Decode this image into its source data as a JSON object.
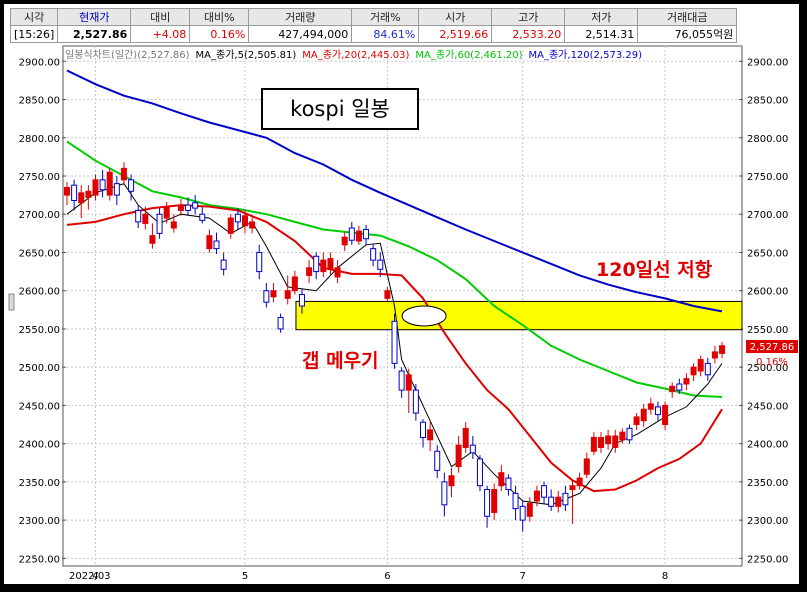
{
  "quote": {
    "headers": [
      "시각",
      "현재가",
      "대비",
      "대비%",
      "거래량",
      "거래%",
      "시가",
      "고가",
      "저가",
      "거래대금"
    ],
    "values": [
      "[15:26]",
      "2,527.86",
      "+4.08",
      "0.16%",
      "427,494,000",
      "84.61%",
      "2,519.66",
      "2,533.20",
      "2,514.31",
      "76,055억원"
    ],
    "value_colors": [
      "#000000",
      "#000000",
      "#e00000",
      "#e00000",
      "#000000",
      "#1a2fd0",
      "#e00000",
      "#e00000",
      "#000000",
      "#000000"
    ]
  },
  "legend": [
    {
      "text": "일봉식차트(일간)(2,527.86)",
      "color": "#777777"
    },
    {
      "text": "MA_종가,5(2,505.81)",
      "color": "#000000"
    },
    {
      "text": "MA_종가,20(2,445.03)",
      "color": "#e00000"
    },
    {
      "text": "MA_종가,60(2,461.20)",
      "color": "#00c000"
    },
    {
      "text": "MA_종가,120(2,573.29)",
      "color": "#0000c8"
    }
  ],
  "annotations": {
    "title": "kospi  일봉",
    "resistance": "120일선 저항",
    "gap_fill": "갭 메우기"
  },
  "price_tag": {
    "price": "2,527.86",
    "pct": "0.16%"
  },
  "chart_data": {
    "type": "candlestick",
    "ylim": [
      2240,
      2920
    ],
    "yticks": [
      2250,
      2300,
      2350,
      2400,
      2450,
      2500,
      2550,
      2600,
      2650,
      2700,
      2750,
      2800,
      2850,
      2900
    ],
    "ytick_labels": [
      "2250.00",
      "2300.00",
      "2350.00",
      "2400.00",
      "2450.00",
      "2500.00",
      "2550.00",
      "2600.00",
      "2650.00",
      "2700.00",
      "2750.00",
      "2800.00",
      "2850.00",
      "2900.00"
    ],
    "x_labels": [
      {
        "index": 0,
        "text": "2022/03"
      },
      {
        "index": 4,
        "text": "4"
      },
      {
        "index": 25,
        "text": "5"
      },
      {
        "index": 45,
        "text": "6"
      },
      {
        "index": 64,
        "text": "7"
      },
      {
        "index": 84,
        "text": "8"
      }
    ],
    "candles": [
      {
        "o": 2725,
        "c": 2735,
        "h": 2742,
        "l": 2712
      },
      {
        "o": 2738,
        "c": 2718,
        "h": 2745,
        "l": 2705
      },
      {
        "o": 2715,
        "c": 2728,
        "h": 2738,
        "l": 2695
      },
      {
        "o": 2722,
        "c": 2730,
        "h": 2738,
        "l": 2706
      },
      {
        "o": 2725,
        "c": 2745,
        "h": 2752,
        "l": 2718
      },
      {
        "o": 2745,
        "c": 2732,
        "h": 2758,
        "l": 2722
      },
      {
        "o": 2725,
        "c": 2755,
        "h": 2760,
        "l": 2718
      },
      {
        "o": 2740,
        "c": 2725,
        "h": 2750,
        "l": 2712
      },
      {
        "o": 2745,
        "c": 2760,
        "h": 2768,
        "l": 2738
      },
      {
        "o": 2745,
        "c": 2730,
        "h": 2752,
        "l": 2718
      },
      {
        "o": 2705,
        "c": 2690,
        "h": 2712,
        "l": 2682
      },
      {
        "o": 2688,
        "c": 2700,
        "h": 2710,
        "l": 2680
      },
      {
        "o": 2662,
        "c": 2672,
        "h": 2688,
        "l": 2655
      },
      {
        "o": 2700,
        "c": 2675,
        "h": 2708,
        "l": 2668
      },
      {
        "o": 2695,
        "c": 2710,
        "h": 2716,
        "l": 2688
      },
      {
        "o": 2682,
        "c": 2690,
        "h": 2700,
        "l": 2676
      },
      {
        "o": 2705,
        "c": 2712,
        "h": 2720,
        "l": 2698
      },
      {
        "o": 2712,
        "c": 2705,
        "h": 2722,
        "l": 2698
      },
      {
        "o": 2715,
        "c": 2708,
        "h": 2725,
        "l": 2700
      },
      {
        "o": 2700,
        "c": 2692,
        "h": 2710,
        "l": 2688
      },
      {
        "o": 2655,
        "c": 2672,
        "h": 2680,
        "l": 2650
      },
      {
        "o": 2665,
        "c": 2655,
        "h": 2676,
        "l": 2648
      },
      {
        "o": 2640,
        "c": 2628,
        "h": 2650,
        "l": 2620
      },
      {
        "o": 2675,
        "c": 2695,
        "h": 2700,
        "l": 2668
      },
      {
        "o": 2700,
        "c": 2690,
        "h": 2708,
        "l": 2680
      },
      {
        "o": 2685,
        "c": 2698,
        "h": 2706,
        "l": 2675
      },
      {
        "o": 2682,
        "c": 2690,
        "h": 2696,
        "l": 2675
      },
      {
        "o": 2650,
        "c": 2625,
        "h": 2660,
        "l": 2615
      },
      {
        "o": 2600,
        "c": 2585,
        "h": 2610,
        "l": 2578
      },
      {
        "o": 2592,
        "c": 2600,
        "h": 2610,
        "l": 2585
      },
      {
        "o": 2565,
        "c": 2550,
        "h": 2570,
        "l": 2545
      },
      {
        "o": 2590,
        "c": 2600,
        "h": 2620,
        "l": 2582
      },
      {
        "o": 2600,
        "c": 2618,
        "h": 2626,
        "l": 2595
      },
      {
        "o": 2595,
        "c": 2580,
        "h": 2602,
        "l": 2570
      },
      {
        "o": 2620,
        "c": 2630,
        "h": 2640,
        "l": 2610
      },
      {
        "o": 2645,
        "c": 2625,
        "h": 2650,
        "l": 2615
      },
      {
        "o": 2625,
        "c": 2640,
        "h": 2650,
        "l": 2618
      },
      {
        "o": 2628,
        "c": 2642,
        "h": 2650,
        "l": 2620
      },
      {
        "o": 2618,
        "c": 2630,
        "h": 2640,
        "l": 2610
      },
      {
        "o": 2660,
        "c": 2670,
        "h": 2676,
        "l": 2652
      },
      {
        "o": 2682,
        "c": 2666,
        "h": 2690,
        "l": 2660
      },
      {
        "o": 2665,
        "c": 2678,
        "h": 2685,
        "l": 2660
      },
      {
        "o": 2680,
        "c": 2668,
        "h": 2686,
        "l": 2660
      },
      {
        "o": 2655,
        "c": 2640,
        "h": 2660,
        "l": 2632
      },
      {
        "o": 2640,
        "c": 2628,
        "h": 2650,
        "l": 2618
      },
      {
        "o": 2590,
        "c": 2600,
        "h": 2605,
        "l": 2585
      },
      {
        "o": 2560,
        "c": 2505,
        "h": 2570,
        "l": 2498
      },
      {
        "o": 2495,
        "c": 2470,
        "h": 2500,
        "l": 2460
      },
      {
        "o": 2470,
        "c": 2490,
        "h": 2498,
        "l": 2440
      },
      {
        "o": 2470,
        "c": 2440,
        "h": 2478,
        "l": 2430
      },
      {
        "o": 2428,
        "c": 2408,
        "h": 2432,
        "l": 2395
      },
      {
        "o": 2405,
        "c": 2418,
        "h": 2428,
        "l": 2390
      },
      {
        "o": 2390,
        "c": 2365,
        "h": 2398,
        "l": 2355
      },
      {
        "o": 2350,
        "c": 2320,
        "h": 2362,
        "l": 2305
      },
      {
        "o": 2345,
        "c": 2358,
        "h": 2368,
        "l": 2330
      },
      {
        "o": 2370,
        "c": 2398,
        "h": 2410,
        "l": 2362
      },
      {
        "o": 2395,
        "c": 2420,
        "h": 2428,
        "l": 2388
      },
      {
        "o": 2398,
        "c": 2388,
        "h": 2410,
        "l": 2380
      },
      {
        "o": 2380,
        "c": 2345,
        "h": 2385,
        "l": 2338
      },
      {
        "o": 2340,
        "c": 2305,
        "h": 2345,
        "l": 2290
      },
      {
        "o": 2310,
        "c": 2340,
        "h": 2348,
        "l": 2300
      },
      {
        "o": 2345,
        "c": 2362,
        "h": 2372,
        "l": 2338
      },
      {
        "o": 2355,
        "c": 2340,
        "h": 2360,
        "l": 2332
      },
      {
        "o": 2335,
        "c": 2315,
        "h": 2345,
        "l": 2300
      },
      {
        "o": 2318,
        "c": 2300,
        "h": 2325,
        "l": 2285
      },
      {
        "o": 2305,
        "c": 2322,
        "h": 2330,
        "l": 2298
      },
      {
        "o": 2325,
        "c": 2338,
        "h": 2345,
        "l": 2318
      },
      {
        "o": 2345,
        "c": 2330,
        "h": 2350,
        "l": 2322
      },
      {
        "o": 2330,
        "c": 2318,
        "h": 2340,
        "l": 2312
      },
      {
        "o": 2318,
        "c": 2330,
        "h": 2338,
        "l": 2310
      },
      {
        "o": 2335,
        "c": 2320,
        "h": 2345,
        "l": 2312
      },
      {
        "o": 2340,
        "c": 2345,
        "h": 2352,
        "l": 2295
      },
      {
        "o": 2345,
        "c": 2355,
        "h": 2362,
        "l": 2340
      },
      {
        "o": 2360,
        "c": 2380,
        "h": 2388,
        "l": 2355
      },
      {
        "o": 2390,
        "c": 2408,
        "h": 2415,
        "l": 2385
      },
      {
        "o": 2395,
        "c": 2408,
        "h": 2415,
        "l": 2388
      },
      {
        "o": 2400,
        "c": 2410,
        "h": 2418,
        "l": 2392
      },
      {
        "o": 2395,
        "c": 2410,
        "h": 2418,
        "l": 2388
      },
      {
        "o": 2405,
        "c": 2415,
        "h": 2420,
        "l": 2400
      },
      {
        "o": 2420,
        "c": 2405,
        "h": 2425,
        "l": 2400
      },
      {
        "o": 2425,
        "c": 2435,
        "h": 2440,
        "l": 2418
      },
      {
        "o": 2430,
        "c": 2445,
        "h": 2452,
        "l": 2422
      },
      {
        "o": 2445,
        "c": 2452,
        "h": 2460,
        "l": 2438
      },
      {
        "o": 2448,
        "c": 2438,
        "h": 2455,
        "l": 2430
      },
      {
        "o": 2425,
        "c": 2450,
        "h": 2455,
        "l": 2418
      },
      {
        "o": 2468,
        "c": 2475,
        "h": 2480,
        "l": 2460
      },
      {
        "o": 2478,
        "c": 2470,
        "h": 2485,
        "l": 2465
      },
      {
        "o": 2478,
        "c": 2485,
        "h": 2492,
        "l": 2470
      },
      {
        "o": 2490,
        "c": 2500,
        "h": 2505,
        "l": 2482
      },
      {
        "o": 2495,
        "c": 2510,
        "h": 2515,
        "l": 2488
      },
      {
        "o": 2505,
        "c": 2490,
        "h": 2512,
        "l": 2482
      },
      {
        "o": 2512,
        "c": 2520,
        "h": 2528,
        "l": 2505
      },
      {
        "o": 2518,
        "c": 2528,
        "h": 2533,
        "l": 2512
      }
    ],
    "ma5": [
      [
        0,
        2700
      ],
      [
        4,
        2728
      ],
      [
        8,
        2740
      ],
      [
        10,
        2712
      ],
      [
        13,
        2688
      ],
      [
        16,
        2700
      ],
      [
        20,
        2695
      ],
      [
        23,
        2675
      ],
      [
        26,
        2690
      ],
      [
        28,
        2658
      ],
      [
        31,
        2605
      ],
      [
        35,
        2600
      ],
      [
        38,
        2630
      ],
      [
        42,
        2660
      ],
      [
        44,
        2662
      ],
      [
        46,
        2580
      ],
      [
        47,
        2510
      ],
      [
        51,
        2430
      ],
      [
        54,
        2370
      ],
      [
        57,
        2390
      ],
      [
        60,
        2360
      ],
      [
        64,
        2325
      ],
      [
        68,
        2320
      ],
      [
        72,
        2335
      ],
      [
        75,
        2368
      ],
      [
        77,
        2400
      ],
      [
        80,
        2412
      ],
      [
        84,
        2435
      ],
      [
        87,
        2448
      ],
      [
        90,
        2478
      ],
      [
        92,
        2505
      ]
    ],
    "ma20": [
      [
        0,
        2686
      ],
      [
        4,
        2690
      ],
      [
        8,
        2700
      ],
      [
        12,
        2708
      ],
      [
        16,
        2712
      ],
      [
        20,
        2710
      ],
      [
        24,
        2705
      ],
      [
        28,
        2690
      ],
      [
        32,
        2665
      ],
      [
        36,
        2630
      ],
      [
        40,
        2622
      ],
      [
        44,
        2622
      ],
      [
        47,
        2620
      ],
      [
        50,
        2590
      ],
      [
        53,
        2545
      ],
      [
        56,
        2505
      ],
      [
        59,
        2470
      ],
      [
        62,
        2445
      ],
      [
        65,
        2410
      ],
      [
        68,
        2375
      ],
      [
        71,
        2352
      ],
      [
        74,
        2338
      ],
      [
        77,
        2340
      ],
      [
        80,
        2352
      ],
      [
        83,
        2368
      ],
      [
        86,
        2380
      ],
      [
        89,
        2400
      ],
      [
        92,
        2445
      ]
    ],
    "ma60": [
      [
        0,
        2795
      ],
      [
        4,
        2770
      ],
      [
        8,
        2750
      ],
      [
        12,
        2730
      ],
      [
        16,
        2722
      ],
      [
        20,
        2712
      ],
      [
        24,
        2707
      ],
      [
        28,
        2700
      ],
      [
        32,
        2690
      ],
      [
        36,
        2680
      ],
      [
        40,
        2676
      ],
      [
        44,
        2672
      ],
      [
        48,
        2658
      ],
      [
        52,
        2640
      ],
      [
        56,
        2615
      ],
      [
        60,
        2580
      ],
      [
        64,
        2555
      ],
      [
        68,
        2528
      ],
      [
        72,
        2510
      ],
      [
        76,
        2495
      ],
      [
        80,
        2480
      ],
      [
        84,
        2472
      ],
      [
        88,
        2463
      ],
      [
        92,
        2461
      ]
    ],
    "ma120": [
      [
        0,
        2888
      ],
      [
        4,
        2870
      ],
      [
        8,
        2855
      ],
      [
        12,
        2845
      ],
      [
        16,
        2832
      ],
      [
        20,
        2820
      ],
      [
        24,
        2810
      ],
      [
        28,
        2800
      ],
      [
        32,
        2780
      ],
      [
        36,
        2765
      ],
      [
        40,
        2745
      ],
      [
        44,
        2728
      ],
      [
        48,
        2712
      ],
      [
        52,
        2696
      ],
      [
        56,
        2680
      ],
      [
        60,
        2665
      ],
      [
        64,
        2650
      ],
      [
        68,
        2635
      ],
      [
        72,
        2620
      ],
      [
        76,
        2608
      ],
      [
        80,
        2598
      ],
      [
        84,
        2590
      ],
      [
        88,
        2580
      ],
      [
        92,
        2573
      ]
    ],
    "gap_zone": {
      "y0": 2549,
      "y1": 2586,
      "x_start": 33
    }
  }
}
